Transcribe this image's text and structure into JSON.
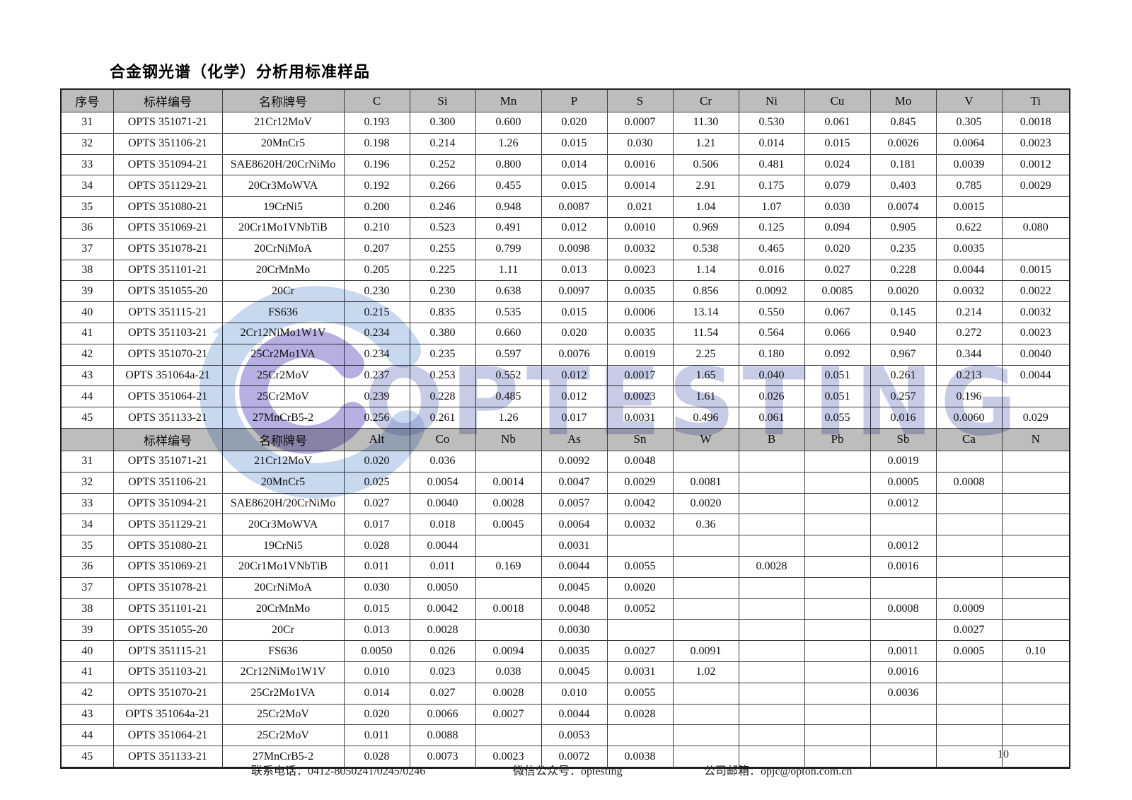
{
  "title": "合金钢光谱（化学）分析用标准样品",
  "watermark": {
    "text": "OPTESTING"
  },
  "page": {
    "number": "10"
  },
  "table": {
    "sections": [
      {
        "headers": [
          "序号",
          "标样编号",
          "名称牌号",
          "C",
          "Si",
          "Mn",
          "P",
          "S",
          "Cr",
          "Ni",
          "Cu",
          "Mo",
          "V",
          "Ti"
        ],
        "rows": [
          [
            "31",
            "OPTS 351071-21",
            "21Cr12MoV",
            "0.193",
            "0.300",
            "0.600",
            "0.020",
            "0.0007",
            "11.30",
            "0.530",
            "0.061",
            "0.845",
            "0.305",
            "0.0018"
          ],
          [
            "32",
            "OPTS 351106-21",
            "20MnCr5",
            "0.198",
            "0.214",
            "1.26",
            "0.015",
            "0.030",
            "1.21",
            "0.014",
            "0.015",
            "0.0026",
            "0.0064",
            "0.0023"
          ],
          [
            "33",
            "OPTS 351094-21",
            "SAE8620H/20CrNiMo",
            "0.196",
            "0.252",
            "0.800",
            "0.014",
            "0.0016",
            "0.506",
            "0.481",
            "0.024",
            "0.181",
            "0.0039",
            "0.0012"
          ],
          [
            "34",
            "OPTS 351129-21",
            "20Cr3MoWVA",
            "0.192",
            "0.266",
            "0.455",
            "0.015",
            "0.0014",
            "2.91",
            "0.175",
            "0.079",
            "0.403",
            "0.785",
            "0.0029"
          ],
          [
            "35",
            "OPTS 351080-21",
            "19CrNi5",
            "0.200",
            "0.246",
            "0.948",
            "0.0087",
            "0.021",
            "1.04",
            "1.07",
            "0.030",
            "0.0074",
            "0.0015",
            ""
          ],
          [
            "36",
            "OPTS 351069-21",
            "20Cr1Mo1VNbTiB",
            "0.210",
            "0.523",
            "0.491",
            "0.012",
            "0.0010",
            "0.969",
            "0.125",
            "0.094",
            "0.905",
            "0.622",
            "0.080"
          ],
          [
            "37",
            "OPTS 351078-21",
            "20CrNiMoA",
            "0.207",
            "0.255",
            "0.799",
            "0.0098",
            "0.0032",
            "0.538",
            "0.465",
            "0.020",
            "0.235",
            "0.0035",
            ""
          ],
          [
            "38",
            "OPTS 351101-21",
            "20CrMnMo",
            "0.205",
            "0.225",
            "1.11",
            "0.013",
            "0.0023",
            "1.14",
            "0.016",
            "0.027",
            "0.228",
            "0.0044",
            "0.0015"
          ],
          [
            "39",
            "OPTS 351055-20",
            "20Cr",
            "0.230",
            "0.230",
            "0.638",
            "0.0097",
            "0.0035",
            "0.856",
            "0.0092",
            "0.0085",
            "0.0020",
            "0.0032",
            "0.0022"
          ],
          [
            "40",
            "OPTS 351115-21",
            "FS636",
            "0.215",
            "0.835",
            "0.535",
            "0.015",
            "0.0006",
            "13.14",
            "0.550",
            "0.067",
            "0.145",
            "0.214",
            "0.0032"
          ],
          [
            "41",
            "OPTS 351103-21",
            "2Cr12NiMo1W1V",
            "0.234",
            "0.380",
            "0.660",
            "0.020",
            "0.0035",
            "11.54",
            "0.564",
            "0.066",
            "0.940",
            "0.272",
            "0.0023"
          ],
          [
            "42",
            "OPTS 351070-21",
            "25Cr2Mo1VA",
            "0.234",
            "0.235",
            "0.597",
            "0.0076",
            "0.0019",
            "2.25",
            "0.180",
            "0.092",
            "0.967",
            "0.344",
            "0.0040"
          ],
          [
            "43",
            "OPTS 351064a-21",
            "25Cr2MoV",
            "0.237",
            "0.253",
            "0.552",
            "0.012",
            "0.0017",
            "1.65",
            "0.040",
            "0.051",
            "0.261",
            "0.213",
            "0.0044"
          ],
          [
            "44",
            "OPTS 351064-21",
            "25Cr2MoV",
            "0.239",
            "0.228",
            "0.485",
            "0.012",
            "0.0023",
            "1.61",
            "0.026",
            "0.051",
            "0.257",
            "0.196",
            ""
          ],
          [
            "45",
            "OPTS 351133-21",
            "27MnCrB5-2",
            "0.256",
            "0.261",
            "1.26",
            "0.017",
            "0.0031",
            "0.496",
            "0.061",
            "0.055",
            "0.016",
            "0.0060",
            "0.029"
          ]
        ]
      },
      {
        "headers": [
          "",
          "标样编号",
          "名称牌号",
          "Alt",
          "Co",
          "Nb",
          "As",
          "Sn",
          "W",
          "B",
          "Pb",
          "Sb",
          "Ca",
          "N"
        ],
        "rows": [
          [
            "31",
            "OPTS 351071-21",
            "21Cr12MoV",
            "0.020",
            "0.036",
            "",
            "0.0092",
            "0.0048",
            "",
            "",
            "",
            "0.0019",
            "",
            ""
          ],
          [
            "32",
            "OPTS 351106-21",
            "20MnCr5",
            "0.025",
            "0.0054",
            "0.0014",
            "0.0047",
            "0.0029",
            "0.0081",
            "",
            "",
            "0.0005",
            "0.0008",
            ""
          ],
          [
            "33",
            "OPTS 351094-21",
            "SAE8620H/20CrNiMo",
            "0.027",
            "0.0040",
            "0.0028",
            "0.0057",
            "0.0042",
            "0.0020",
            "",
            "",
            "0.0012",
            "",
            ""
          ],
          [
            "34",
            "OPTS 351129-21",
            "20Cr3MoWVA",
            "0.017",
            "0.018",
            "0.0045",
            "0.0064",
            "0.0032",
            "0.36",
            "",
            "",
            "",
            "",
            ""
          ],
          [
            "35",
            "OPTS 351080-21",
            "19CrNi5",
            "0.028",
            "0.0044",
            "",
            "0.0031",
            "",
            "",
            "",
            "",
            "0.0012",
            "",
            ""
          ],
          [
            "36",
            "OPTS 351069-21",
            "20Cr1Mo1VNbTiB",
            "0.011",
            "0.011",
            "0.169",
            "0.0044",
            "0.0055",
            "",
            "0.0028",
            "",
            "0.0016",
            "",
            ""
          ],
          [
            "37",
            "OPTS 351078-21",
            "20CrNiMoA",
            "0.030",
            "0.0050",
            "",
            "0.0045",
            "0.0020",
            "",
            "",
            "",
            "",
            "",
            ""
          ],
          [
            "38",
            "OPTS 351101-21",
            "20CrMnMo",
            "0.015",
            "0.0042",
            "0.0018",
            "0.0048",
            "0.0052",
            "",
            "",
            "",
            "0.0008",
            "0.0009",
            ""
          ],
          [
            "39",
            "OPTS 351055-20",
            "20Cr",
            "0.013",
            "0.0028",
            "",
            "0.0030",
            "",
            "",
            "",
            "",
            "",
            "0.0027",
            ""
          ],
          [
            "40",
            "OPTS 351115-21",
            "FS636",
            "0.0050",
            "0.026",
            "0.0094",
            "0.0035",
            "0.0027",
            "0.0091",
            "",
            "",
            "0.0011",
            "0.0005",
            "0.10"
          ],
          [
            "41",
            "OPTS 351103-21",
            "2Cr12NiMo1W1V",
            "0.010",
            "0.023",
            "0.038",
            "0.0045",
            "0.0031",
            "1.02",
            "",
            "",
            "0.0016",
            "",
            ""
          ],
          [
            "42",
            "OPTS 351070-21",
            "25Cr2Mo1VA",
            "0.014",
            "0.027",
            "0.0028",
            "0.010",
            "0.0055",
            "",
            "",
            "",
            "0.0036",
            "",
            ""
          ],
          [
            "43",
            "OPTS 351064a-21",
            "25Cr2MoV",
            "0.020",
            "0.0066",
            "0.0027",
            "0.0044",
            "0.0028",
            "",
            "",
            "",
            "",
            "",
            ""
          ],
          [
            "44",
            "OPTS 351064-21",
            "25Cr2MoV",
            "0.011",
            "0.0088",
            "",
            "0.0053",
            "",
            "",
            "",
            "",
            "",
            "",
            ""
          ],
          [
            "45",
            "OPTS 351133-21",
            "27MnCrB5-2",
            "0.028",
            "0.0073",
            "0.0023",
            "0.0072",
            "0.0038",
            "",
            "",
            "",
            "",
            "",
            ""
          ]
        ]
      }
    ]
  },
  "footer": {
    "phone": "联系电话：0412-8050241/0245/0246",
    "wechat": "微信公众号：optesting",
    "email": "公司邮箱：opjc@opton.com.cn"
  }
}
